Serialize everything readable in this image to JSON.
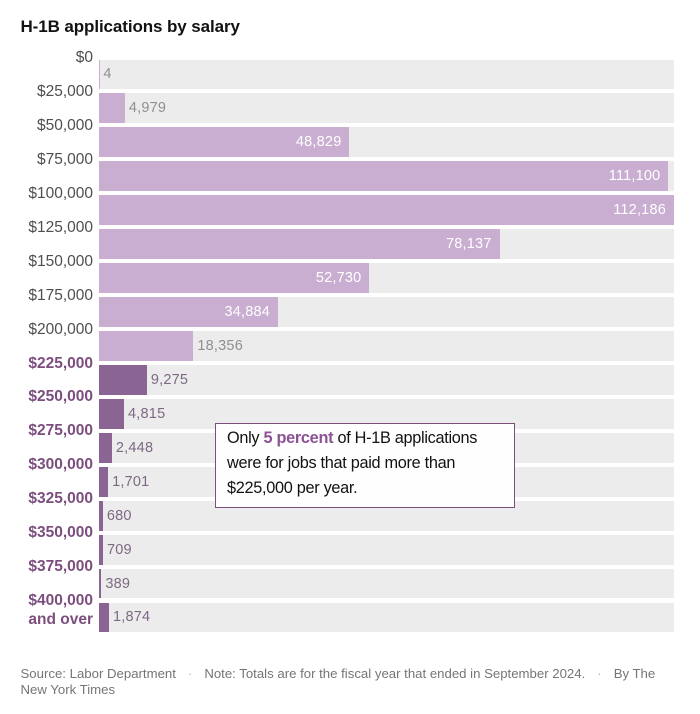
{
  "chart_data": {
    "type": "bar",
    "orientation": "horizontal",
    "title": "H-1B applications by salary",
    "xlabel": "",
    "ylabel": "salary",
    "xlim": [
      0,
      112186
    ],
    "grid": false,
    "categories": [
      "$0",
      "$25,000",
      "$50,000",
      "$75,000",
      "$100,000",
      "$125,000",
      "$150,000",
      "$175,000",
      "$200,000",
      "$225,000",
      "$250,000",
      "$275,000",
      "$300,000",
      "$325,000",
      "$350,000",
      "$375,000",
      "$400,000 and over"
    ],
    "values": [
      4,
      4979,
      48829,
      111100,
      112186,
      78137,
      52730,
      34884,
      18356,
      9275,
      4815,
      2448,
      1701,
      680,
      709,
      389,
      1874
    ],
    "bars": [
      {
        "value": 4,
        "label": "4",
        "color": "light",
        "label_placement": "outside",
        "label_color": "gray"
      },
      {
        "value": 4979,
        "label": "4,979",
        "color": "light",
        "label_placement": "outside",
        "label_color": "gray"
      },
      {
        "value": 48829,
        "label": "48,829",
        "color": "light",
        "label_placement": "inside",
        "label_color": "white"
      },
      {
        "value": 111100,
        "label": "111,100",
        "color": "light",
        "label_placement": "inside",
        "label_color": "white"
      },
      {
        "value": 112186,
        "label": "112,186",
        "color": "light",
        "label_placement": "inside",
        "label_color": "white"
      },
      {
        "value": 78137,
        "label": "78,137",
        "color": "light",
        "label_placement": "inside",
        "label_color": "white"
      },
      {
        "value": 52730,
        "label": "52,730",
        "color": "light",
        "label_placement": "inside",
        "label_color": "white"
      },
      {
        "value": 34884,
        "label": "34,884",
        "color": "light",
        "label_placement": "inside",
        "label_color": "white"
      },
      {
        "value": 18356,
        "label": "18,356",
        "color": "light",
        "label_placement": "outside",
        "label_color": "gray"
      },
      {
        "value": 9275,
        "label": "9,275",
        "color": "dark",
        "label_placement": "outside",
        "label_color": "purple"
      },
      {
        "value": 4815,
        "label": "4,815",
        "color": "dark",
        "label_placement": "outside",
        "label_color": "purple"
      },
      {
        "value": 2448,
        "label": "2,448",
        "color": "dark",
        "label_placement": "outside",
        "label_color": "purple"
      },
      {
        "value": 1701,
        "label": "1,701",
        "color": "dark",
        "label_placement": "outside",
        "label_color": "purple"
      },
      {
        "value": 680,
        "label": "680",
        "color": "dark",
        "label_placement": "outside",
        "label_color": "purple"
      },
      {
        "value": 709,
        "label": "709",
        "color": "dark",
        "label_placement": "outside",
        "label_color": "purple"
      },
      {
        "value": 389,
        "label": "389",
        "color": "dark",
        "label_placement": "outside",
        "label_color": "purple"
      },
      {
        "value": 1874,
        "label": "1,874",
        "color": "dark",
        "label_placement": "outside",
        "label_color": "purple"
      }
    ],
    "ticks": [
      {
        "lines": [
          "$0"
        ],
        "bold": false
      },
      {
        "lines": [
          "$25,000"
        ],
        "bold": false
      },
      {
        "lines": [
          "$50,000"
        ],
        "bold": false
      },
      {
        "lines": [
          "$75,000"
        ],
        "bold": false
      },
      {
        "lines": [
          "$100,000"
        ],
        "bold": false
      },
      {
        "lines": [
          "$125,000"
        ],
        "bold": false
      },
      {
        "lines": [
          "$150,000"
        ],
        "bold": false
      },
      {
        "lines": [
          "$175,000"
        ],
        "bold": false
      },
      {
        "lines": [
          "$200,000"
        ],
        "bold": false
      },
      {
        "lines": [
          "$225,000"
        ],
        "bold": true
      },
      {
        "lines": [
          "$250,000"
        ],
        "bold": true
      },
      {
        "lines": [
          "$275,000"
        ],
        "bold": true
      },
      {
        "lines": [
          "$300,000"
        ],
        "bold": true
      },
      {
        "lines": [
          "$325,000"
        ],
        "bold": true
      },
      {
        "lines": [
          "$350,000"
        ],
        "bold": true
      },
      {
        "lines": [
          "$375,000"
        ],
        "bold": true
      },
      {
        "lines": [
          "$400,000",
          "and over"
        ],
        "bold": true
      }
    ],
    "colors": {
      "bar_light": "#c9aed1",
      "bar_dark": "#8a6492",
      "row_background": "#ececec",
      "tick_regular": "#4f4f4f",
      "tick_bold": "#7b4e7e",
      "value_label_white": "#ffffff",
      "value_label_gray": "#8f8f8f",
      "value_label_purple": "#7d6983"
    },
    "annotation": {
      "text": "Only 5 percent of H-1B applications were for jobs that paid more than $225,000 per year.",
      "highlight": "5 percent",
      "lines": [
        [
          {
            "text": "Only "
          },
          {
            "text": "5 percent",
            "bold": true
          },
          {
            "text": " of H-1B applications"
          }
        ],
        [
          {
            "text": "were for jobs that paid more than"
          }
        ],
        [
          {
            "text": "$225,000 per year."
          }
        ]
      ]
    }
  },
  "header": {
    "title": "H-1B applications by salary"
  },
  "footer": {
    "source": "Source: Labor Department",
    "note": "Note: Totals are for the fiscal year that ended in September 2024.",
    "byline": "By The New York Times",
    "separator": "·"
  }
}
